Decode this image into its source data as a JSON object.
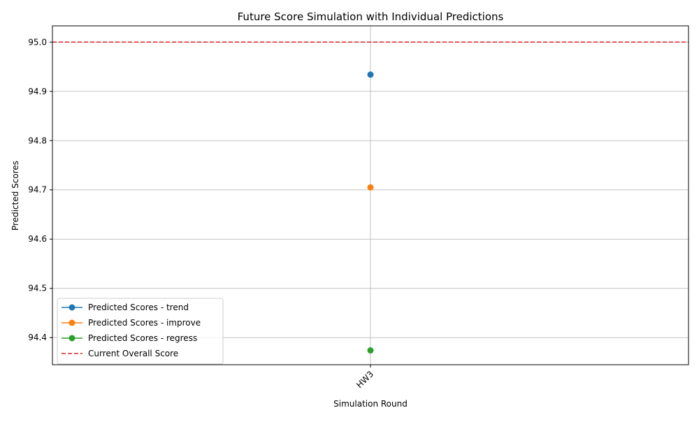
{
  "chart_data": {
    "type": "line",
    "title": "Future Score Simulation with Individual Predictions",
    "xlabel": "Simulation Round",
    "ylabel": "Predicted Scores",
    "categories": [
      "HW3"
    ],
    "ylim": [
      94.345,
      95.033
    ],
    "yticks": [
      94.4,
      94.5,
      94.6,
      94.7,
      94.8,
      94.9,
      95.0
    ],
    "grid": true,
    "legend_position": "lower-left",
    "series": [
      {
        "name": "Predicted Scores - trend",
        "values": [
          94.934
        ],
        "color": "#1f77b4"
      },
      {
        "name": "Predicted Scores - improve",
        "values": [
          94.705
        ],
        "color": "#ff7f0e"
      },
      {
        "name": "Predicted Scores - regress",
        "values": [
          94.374
        ],
        "color": "#2ca02c"
      }
    ],
    "reference_line": {
      "name": "Current Overall Score",
      "value": 95.0,
      "color": "#d62728",
      "style": "dashed"
    }
  }
}
